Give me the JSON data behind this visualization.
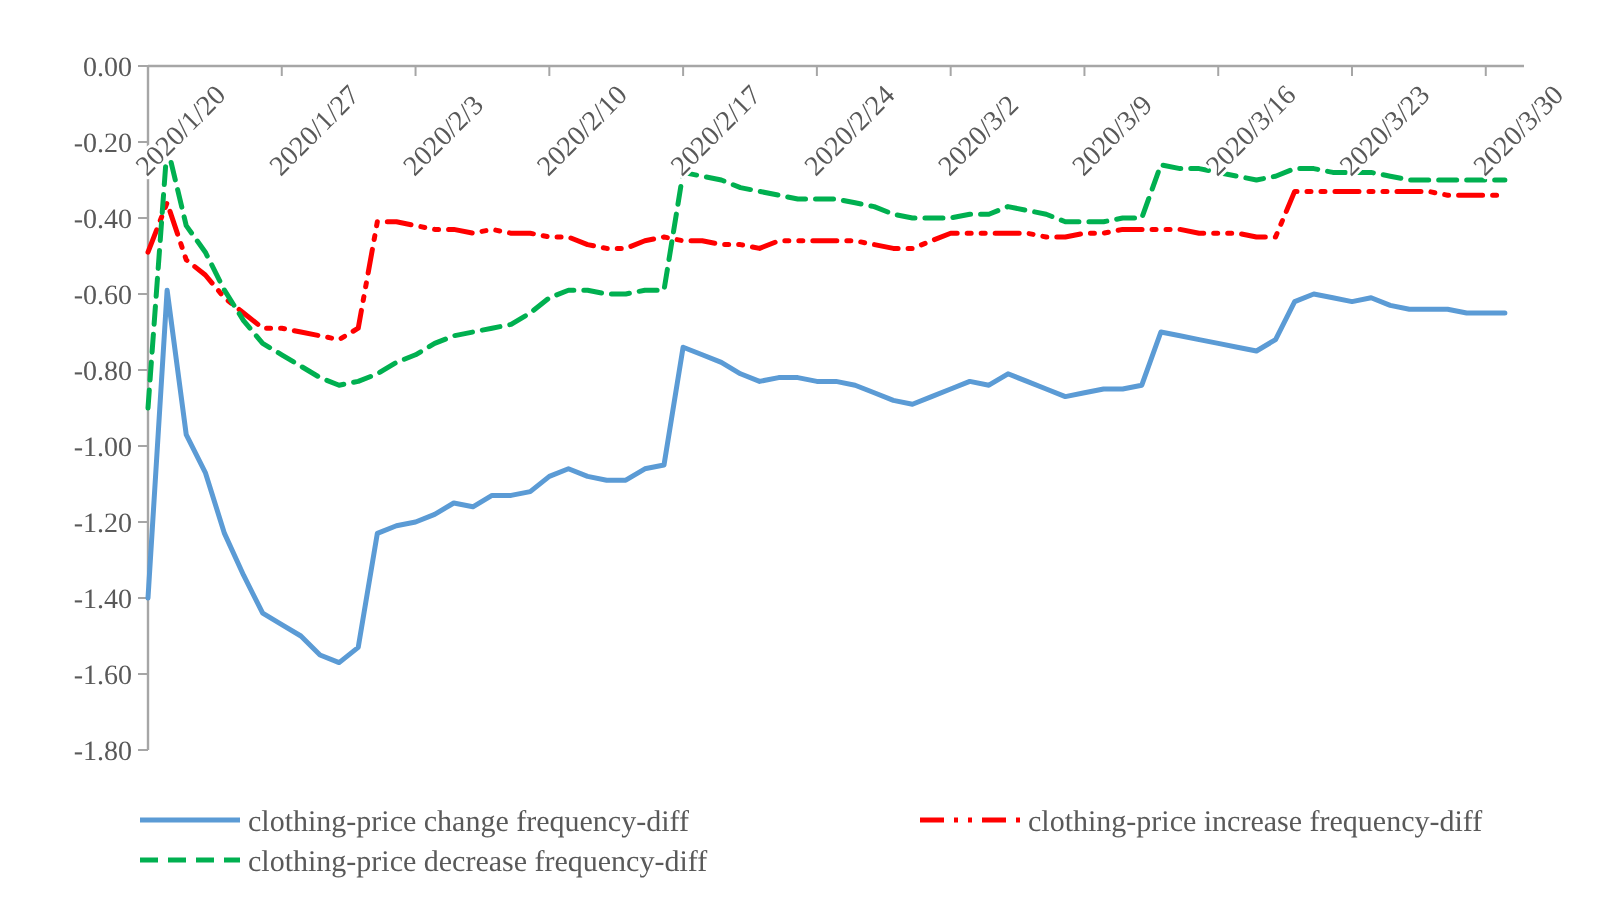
{
  "chart_data": {
    "type": "line",
    "x": [
      "2020-01-20",
      "2020-01-21",
      "2020-01-22",
      "2020-01-23",
      "2020-01-24",
      "2020-01-25",
      "2020-01-26",
      "2020-01-27",
      "2020-01-28",
      "2020-01-29",
      "2020-01-30",
      "2020-01-31",
      "2020-02-01",
      "2020-02-02",
      "2020-02-03",
      "2020-02-04",
      "2020-02-05",
      "2020-02-06",
      "2020-02-07",
      "2020-02-08",
      "2020-02-09",
      "2020-02-10",
      "2020-02-11",
      "2020-02-12",
      "2020-02-13",
      "2020-02-14",
      "2020-02-15",
      "2020-02-16",
      "2020-02-17",
      "2020-02-18",
      "2020-02-19",
      "2020-02-20",
      "2020-02-21",
      "2020-02-22",
      "2020-02-23",
      "2020-02-24",
      "2020-02-25",
      "2020-02-26",
      "2020-02-27",
      "2020-02-28",
      "2020-02-29",
      "2020-03-01",
      "2020-03-02",
      "2020-03-03",
      "2020-03-04",
      "2020-03-05",
      "2020-03-06",
      "2020-03-07",
      "2020-03-08",
      "2020-03-09",
      "2020-03-10",
      "2020-03-11",
      "2020-03-12",
      "2020-03-13",
      "2020-03-14",
      "2020-03-15",
      "2020-03-16",
      "2020-03-17",
      "2020-03-18",
      "2020-03-19",
      "2020-03-20",
      "2020-03-21",
      "2020-03-22",
      "2020-03-23",
      "2020-03-24",
      "2020-03-25",
      "2020-03-26",
      "2020-03-27",
      "2020-03-28",
      "2020-03-29",
      "2020-03-30",
      "2020-03-31"
    ],
    "series": [
      {
        "name": "clothing-price change frequency-diff",
        "color": "#5b9bd5",
        "line_style": "solid",
        "values": [
          -1.4,
          -0.59,
          -0.97,
          -1.07,
          -1.23,
          -1.34,
          -1.44,
          -1.47,
          -1.5,
          -1.55,
          -1.57,
          -1.53,
          -1.23,
          -1.21,
          -1.2,
          -1.18,
          -1.15,
          -1.16,
          -1.13,
          -1.13,
          -1.12,
          -1.08,
          -1.06,
          -1.08,
          -1.09,
          -1.09,
          -1.06,
          -1.05,
          -0.74,
          -0.76,
          -0.78,
          -0.81,
          -0.83,
          -0.82,
          -0.82,
          -0.83,
          -0.83,
          -0.84,
          -0.86,
          -0.88,
          -0.89,
          -0.87,
          -0.85,
          -0.83,
          -0.84,
          -0.81,
          -0.83,
          -0.85,
          -0.87,
          -0.86,
          -0.85,
          -0.85,
          -0.84,
          -0.7,
          -0.71,
          -0.72,
          -0.73,
          -0.74,
          -0.75,
          -0.72,
          -0.62,
          -0.6,
          -0.61,
          -0.62,
          -0.61,
          -0.63,
          -0.64,
          -0.64,
          -0.64,
          -0.65,
          -0.65,
          -0.65
        ]
      },
      {
        "name": "clothing-price increase frequency-diff",
        "color": "#ff0000",
        "line_style": "dashdotdot",
        "values": [
          -0.49,
          -0.36,
          -0.51,
          -0.55,
          -0.61,
          -0.65,
          -0.69,
          -0.69,
          -0.7,
          -0.71,
          -0.72,
          -0.69,
          -0.41,
          -0.41,
          -0.42,
          -0.43,
          -0.43,
          -0.44,
          -0.43,
          -0.44,
          -0.44,
          -0.45,
          -0.45,
          -0.47,
          -0.48,
          -0.48,
          -0.46,
          -0.45,
          -0.46,
          -0.46,
          -0.47,
          -0.47,
          -0.48,
          -0.46,
          -0.46,
          -0.46,
          -0.46,
          -0.46,
          -0.47,
          -0.48,
          -0.48,
          -0.46,
          -0.44,
          -0.44,
          -0.44,
          -0.44,
          -0.44,
          -0.45,
          -0.45,
          -0.44,
          -0.44,
          -0.43,
          -0.43,
          -0.43,
          -0.43,
          -0.44,
          -0.44,
          -0.44,
          -0.45,
          -0.45,
          -0.33,
          -0.33,
          -0.33,
          -0.33,
          -0.33,
          -0.33,
          -0.33,
          -0.33,
          -0.34,
          -0.34,
          -0.34,
          -0.34
        ]
      },
      {
        "name": "clothing-price decrease frequency-diff",
        "color": "#00b050",
        "line_style": "dashed",
        "values": [
          -0.9,
          -0.21,
          -0.42,
          -0.49,
          -0.59,
          -0.67,
          -0.73,
          -0.76,
          -0.79,
          -0.82,
          -0.84,
          -0.83,
          -0.81,
          -0.78,
          -0.76,
          -0.73,
          -0.71,
          -0.7,
          -0.69,
          -0.68,
          -0.65,
          -0.61,
          -0.59,
          -0.59,
          -0.6,
          -0.6,
          -0.59,
          -0.59,
          -0.28,
          -0.29,
          -0.3,
          -0.32,
          -0.33,
          -0.34,
          -0.35,
          -0.35,
          -0.35,
          -0.36,
          -0.37,
          -0.39,
          -0.4,
          -0.4,
          -0.4,
          -0.39,
          -0.39,
          -0.37,
          -0.38,
          -0.39,
          -0.41,
          -0.41,
          -0.41,
          -0.4,
          -0.4,
          -0.26,
          -0.27,
          -0.27,
          -0.28,
          -0.29,
          -0.3,
          -0.29,
          -0.27,
          -0.27,
          -0.28,
          -0.28,
          -0.28,
          -0.29,
          -0.3,
          -0.3,
          -0.3,
          -0.3,
          -0.3,
          -0.3
        ]
      }
    ],
    "xlim": [
      "2020-01-20",
      "2020-04-01"
    ],
    "xticks": [
      {
        "value": "2020-01-20",
        "label": "2020/1/20"
      },
      {
        "value": "2020-01-27",
        "label": "2020/1/27"
      },
      {
        "value": "2020-02-03",
        "label": "2020/2/3"
      },
      {
        "value": "2020-02-10",
        "label": "2020/2/10"
      },
      {
        "value": "2020-02-17",
        "label": "2020/2/17"
      },
      {
        "value": "2020-02-24",
        "label": "2020/2/24"
      },
      {
        "value": "2020-03-02",
        "label": "2020/3/2"
      },
      {
        "value": "2020-03-09",
        "label": "2020/3/9"
      },
      {
        "value": "2020-03-16",
        "label": "2020/3/16"
      },
      {
        "value": "2020-03-23",
        "label": "2020/3/23"
      },
      {
        "value": "2020-03-30",
        "label": "2020/3/30"
      }
    ],
    "ylim": [
      -1.8,
      0
    ],
    "yticks": [
      {
        "value": 0,
        "label": "0.00"
      },
      {
        "value": -0.2,
        "label": "-0.20"
      },
      {
        "value": -0.4,
        "label": "-0.40"
      },
      {
        "value": -0.6,
        "label": "-0.60"
      },
      {
        "value": -0.8,
        "label": "-0.80"
      },
      {
        "value": -1.0,
        "label": "-1.00"
      },
      {
        "value": -1.2,
        "label": "-1.20"
      },
      {
        "value": -1.4,
        "label": "-1.40"
      },
      {
        "value": -1.6,
        "label": "-1.60"
      },
      {
        "value": -1.8,
        "label": "-1.80"
      }
    ],
    "grid": false,
    "legend": "bottom",
    "marker": "none"
  }
}
